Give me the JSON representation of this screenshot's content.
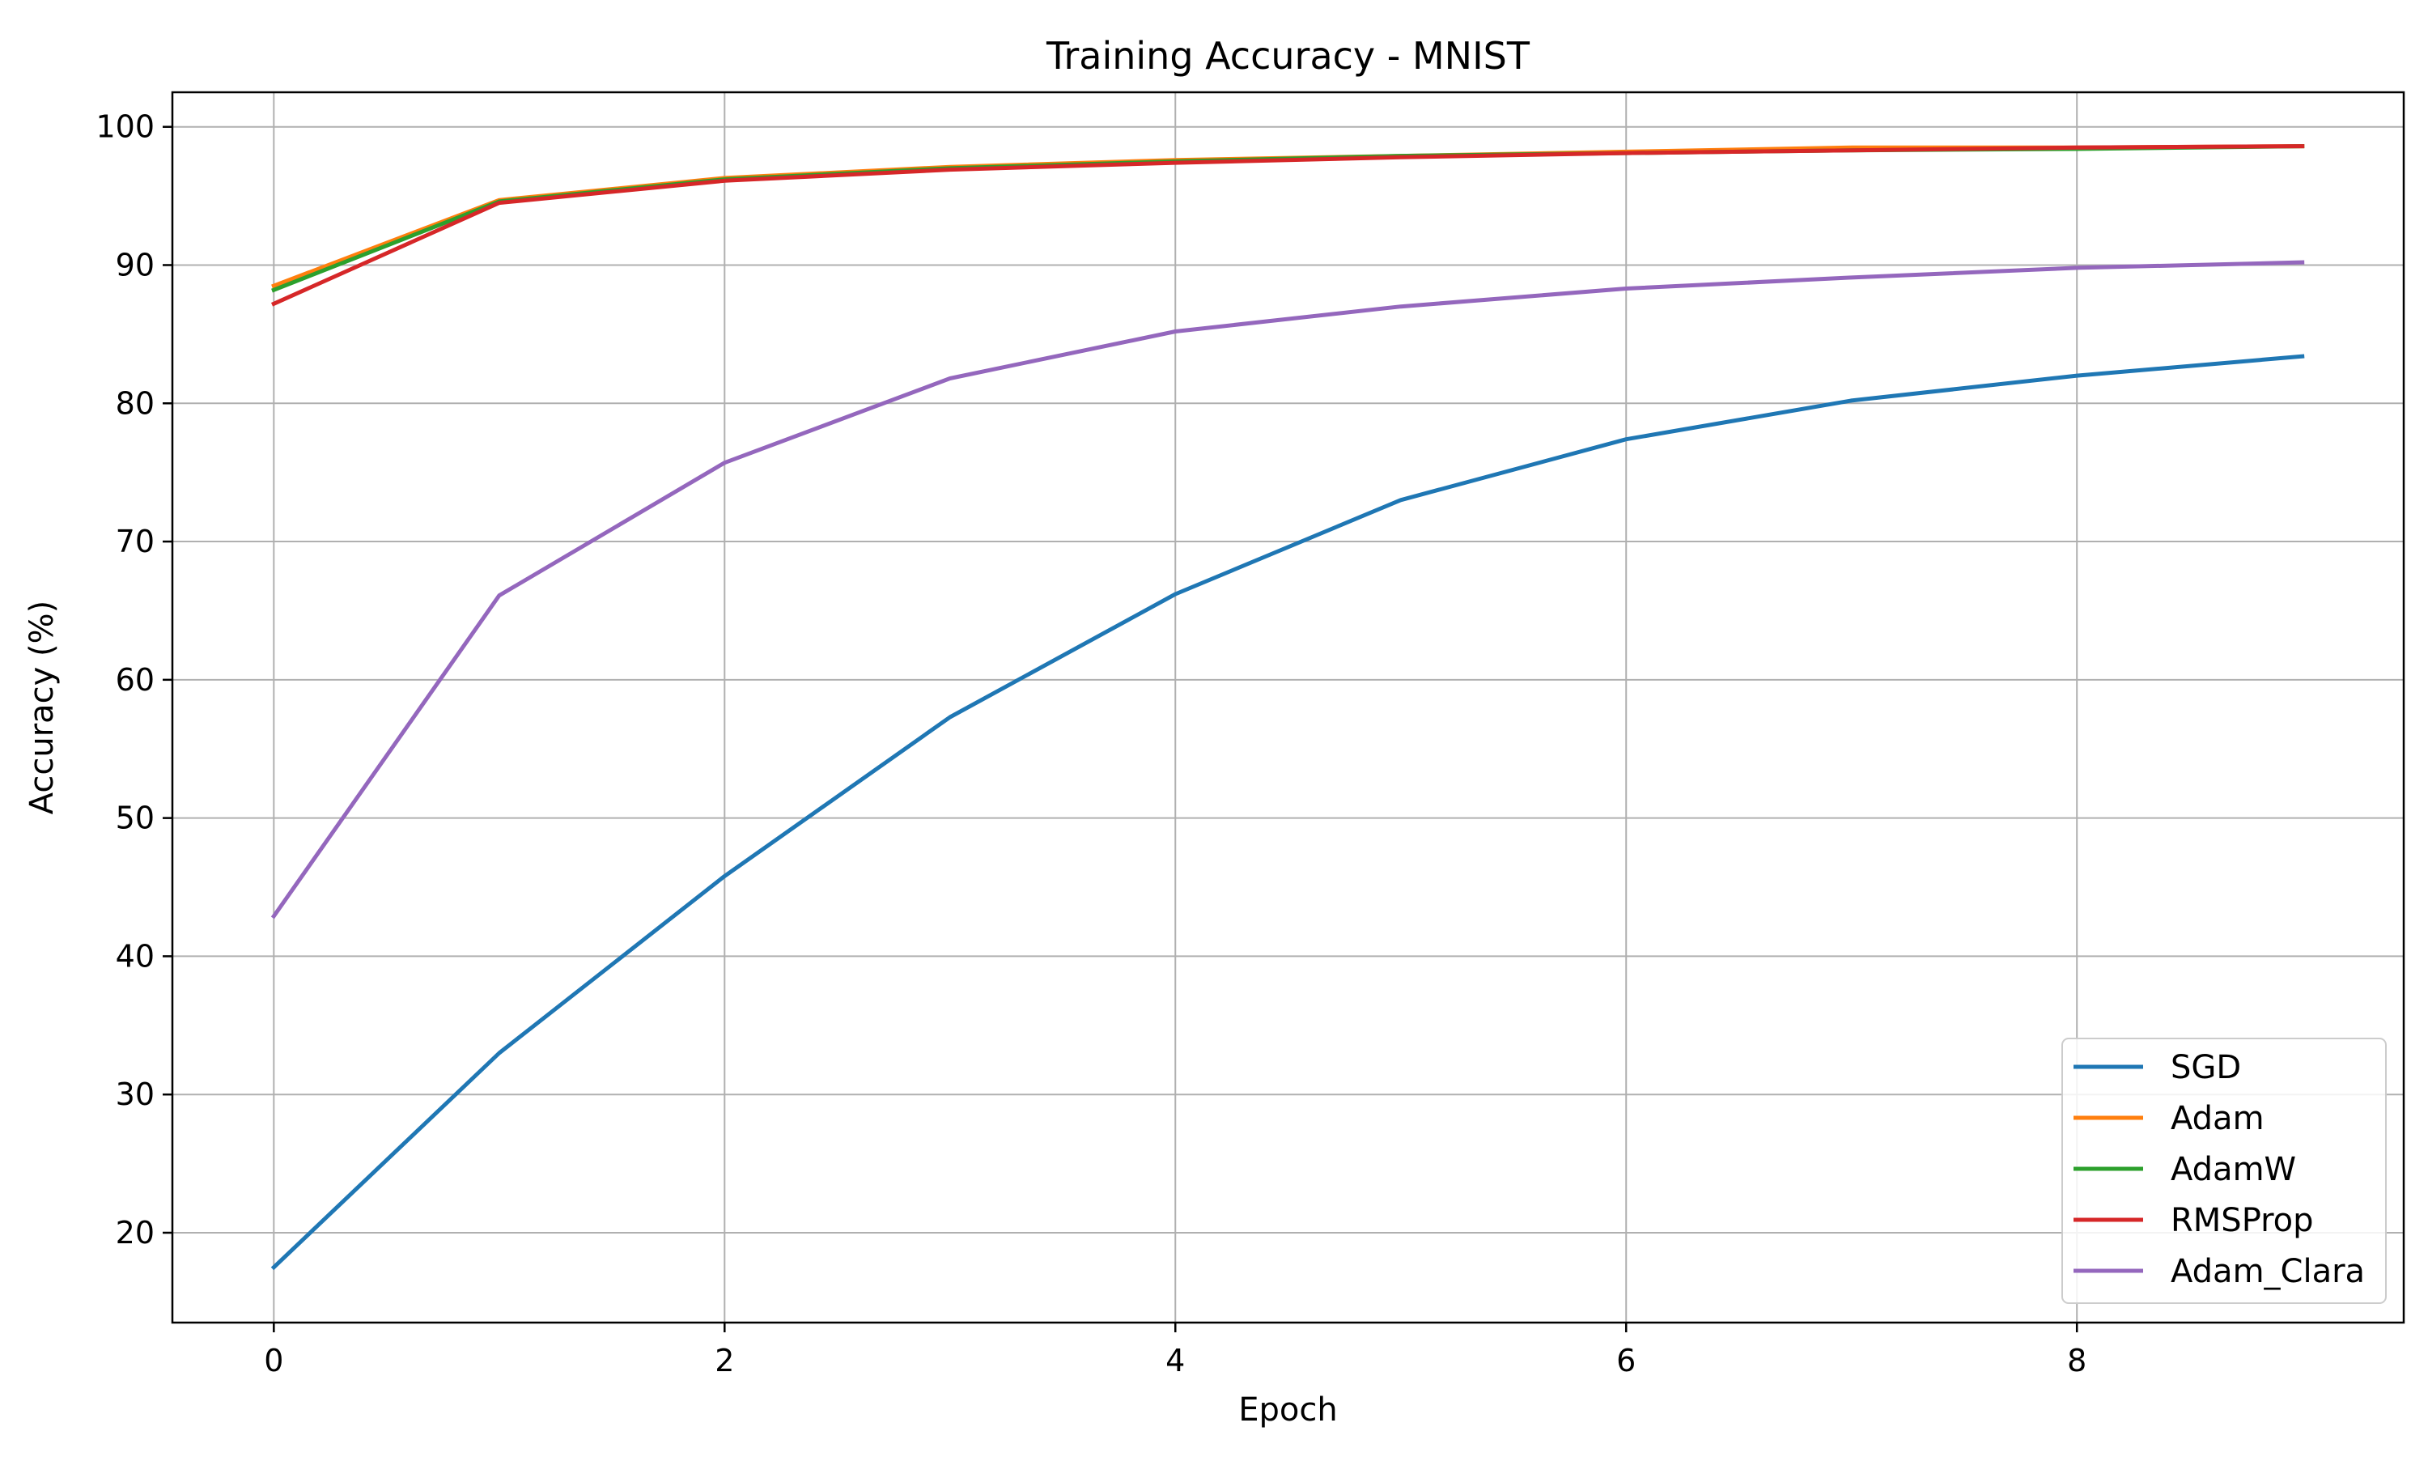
{
  "chart_data": {
    "type": "line",
    "title": "Training Accuracy - MNIST",
    "xlabel": "Epoch",
    "ylabel": "Accuracy (%)",
    "x": [
      0,
      1,
      2,
      3,
      4,
      5,
      6,
      7,
      8,
      9
    ],
    "xlim": [
      -0.45,
      9.45
    ],
    "ylim": [
      13.5,
      102.5
    ],
    "xticks": [
      0,
      2,
      4,
      6,
      8
    ],
    "yticks": [
      20,
      30,
      40,
      50,
      60,
      70,
      80,
      90,
      100
    ],
    "grid": true,
    "legend_position": "lower-right",
    "series": [
      {
        "name": "SGD",
        "color": "#1f77b4",
        "values": [
          17.5,
          33.0,
          45.8,
          57.3,
          66.2,
          73.0,
          77.4,
          80.2,
          82.0,
          83.4
        ]
      },
      {
        "name": "Adam",
        "color": "#ff7f0e",
        "values": [
          88.5,
          94.7,
          96.3,
          97.1,
          97.6,
          97.9,
          98.2,
          98.5,
          98.5,
          98.6
        ]
      },
      {
        "name": "AdamW",
        "color": "#2ca02c",
        "values": [
          88.2,
          94.6,
          96.2,
          97.0,
          97.5,
          97.9,
          98.1,
          98.3,
          98.4,
          98.6
        ]
      },
      {
        "name": "RMSProp",
        "color": "#d62728",
        "values": [
          87.2,
          94.5,
          96.1,
          96.9,
          97.4,
          97.8,
          98.1,
          98.3,
          98.5,
          98.6
        ]
      },
      {
        "name": "Adam_Clara",
        "color": "#9467bd",
        "values": [
          42.9,
          66.1,
          75.7,
          81.8,
          85.2,
          87.0,
          88.3,
          89.1,
          89.8,
          90.2
        ]
      }
    ]
  }
}
